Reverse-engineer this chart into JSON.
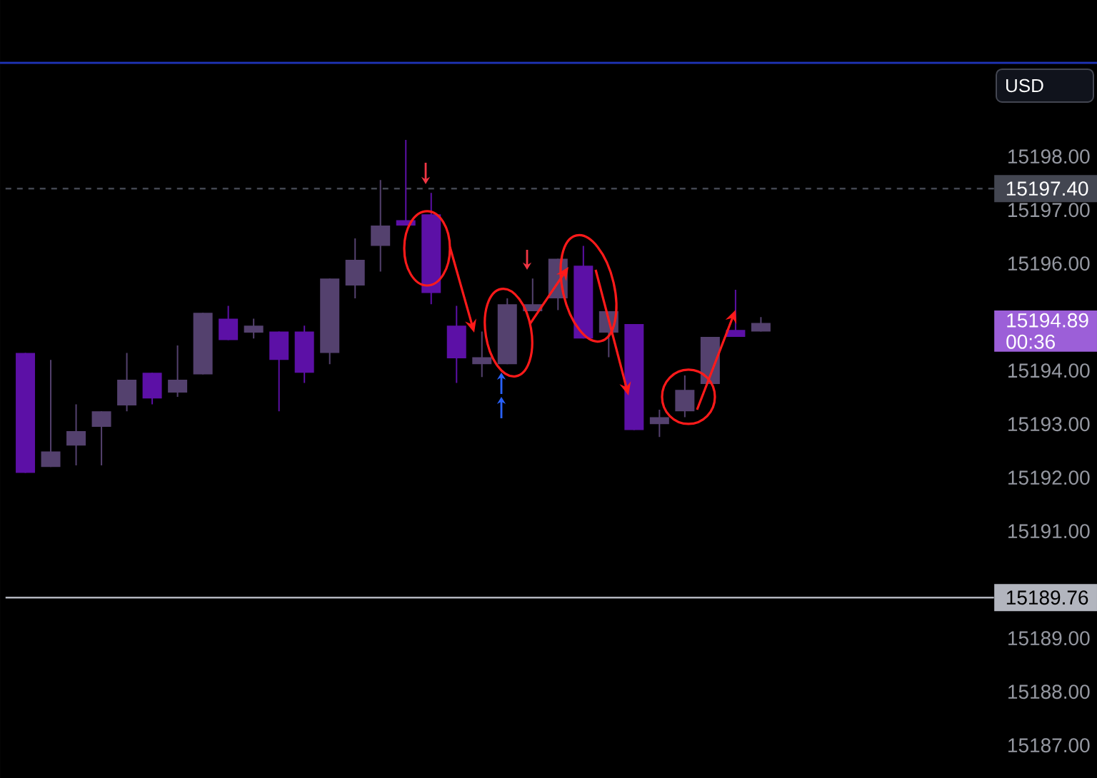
{
  "chart_data": {
    "type": "candlestick",
    "categories": [
      null,
      null,
      null,
      null,
      null,
      null,
      null,
      null,
      null,
      null,
      null,
      null,
      null,
      null,
      null,
      null,
      null,
      null,
      null,
      null,
      null,
      null,
      null,
      null,
      null,
      null,
      null,
      null,
      null,
      null,
      null,
      null,
      null,
      null,
      null,
      null,
      null
    ],
    "ohlc": [
      [
        15194.33,
        15194.33,
        15192.09,
        15192.09
      ],
      [
        15192.2,
        15194.2,
        15192.2,
        15192.49
      ],
      [
        15192.6,
        15193.37,
        15192.23,
        15192.87
      ],
      [
        15192.95,
        15193.24,
        15192.23,
        15193.24
      ],
      [
        15193.35,
        15194.33,
        15193.24,
        15193.83
      ],
      [
        15193.96,
        15193.96,
        15193.37,
        15193.48
      ],
      [
        15193.59,
        15194.47,
        15193.51,
        15193.83
      ],
      [
        15193.93,
        15195.08,
        15193.93,
        15195.08
      ],
      [
        15194.97,
        15195.21,
        15194.57,
        15194.57
      ],
      [
        15194.71,
        15194.97,
        15194.6,
        15194.84
      ],
      [
        15194.73,
        15194.73,
        15193.24,
        15194.2
      ],
      [
        15194.73,
        15194.84,
        15193.77,
        15193.96
      ],
      [
        15194.33,
        15195.72,
        15194.12,
        15195.72
      ],
      [
        15195.59,
        15196.47,
        15195.35,
        15196.07
      ],
      [
        15196.33,
        15197.56,
        15195.85,
        15196.71
      ],
      [
        15196.81,
        15198.31,
        15196.71,
        15196.71
      ],
      [
        15196.92,
        15197.32,
        15195.24,
        15195.45
      ],
      [
        15194.84,
        15195.21,
        15193.77,
        15194.23
      ],
      [
        15194.12,
        15194.73,
        15193.88,
        15194.25
      ],
      [
        15194.12,
        15195.35,
        15194.12,
        15195.24
      ],
      [
        15195.11,
        15195.72,
        15195.11,
        15195.24
      ],
      [
        15195.35,
        15196.09,
        15195.13,
        15196.09
      ],
      [
        15195.96,
        15196.33,
        15194.6,
        15194.6
      ],
      [
        15194.71,
        15195.11,
        15194.25,
        15195.11
      ],
      [
        15194.87,
        15194.87,
        15192.89,
        15192.89
      ],
      [
        15193.0,
        15193.27,
        15192.76,
        15193.13
      ],
      [
        15193.24,
        15193.91,
        15193.13,
        15193.64
      ],
      [
        15193.75,
        15194.63,
        15193.75,
        15194.63
      ],
      [
        15194.76,
        15195.51,
        15194.63,
        15194.63
      ],
      [
        15194.73,
        15195.0,
        15194.73,
        15194.89
      ],
      null,
      null,
      null,
      null,
      null,
      null,
      null
    ],
    "colors": [
      "#5c10a6",
      "#54416e",
      "#54416e",
      "#54416e",
      "#54416e",
      "#5c10a6",
      "#54416e",
      "#54416e",
      "#5c10a6",
      "#54416e",
      "#5c10a6",
      "#5c10a6",
      "#54416e",
      "#54416e",
      "#54416e",
      "#5c10a6",
      "#5c10a6",
      "#5c10a6",
      "#54416e",
      "#54416e",
      "#54416e",
      "#54416e",
      "#5c10a6",
      "#54416e",
      "#5c10a6",
      "#54416e",
      "#54416e",
      "#54416e",
      "#5c10a6",
      "#54416e",
      null,
      null,
      null,
      null,
      null,
      null,
      null
    ],
    "ylim": [
      15186.39,
      15199.75
    ],
    "yticks": [
      {
        "value": 15187,
        "label": "15187.00"
      },
      {
        "value": 15188,
        "label": "15188.00"
      },
      {
        "value": 15189,
        "label": "15189.00"
      },
      {
        "value": 15191,
        "label": "15191.00"
      },
      {
        "value": 15192,
        "label": "15192.00"
      },
      {
        "value": 15193,
        "label": "15193.00"
      },
      {
        "value": 15194,
        "label": "15194.00"
      },
      {
        "value": 15196,
        "label": "15196.00"
      },
      {
        "value": 15197,
        "label": "15197.00"
      },
      {
        "value": 15198,
        "label": "15198.00"
      }
    ],
    "tick_labels": "y",
    "ref_lines": [
      {
        "axis": "y",
        "value": 15197.4,
        "label": "15197.40",
        "color": "#434651",
        "line_style": "dashed"
      },
      {
        "axis": "y",
        "value": 15189.76,
        "label": "15189.76",
        "color": "#b2b5be",
        "line_style": "solid"
      }
    ],
    "annotations": [
      "15194.89",
      "00:36",
      "USD"
    ]
  }
}
